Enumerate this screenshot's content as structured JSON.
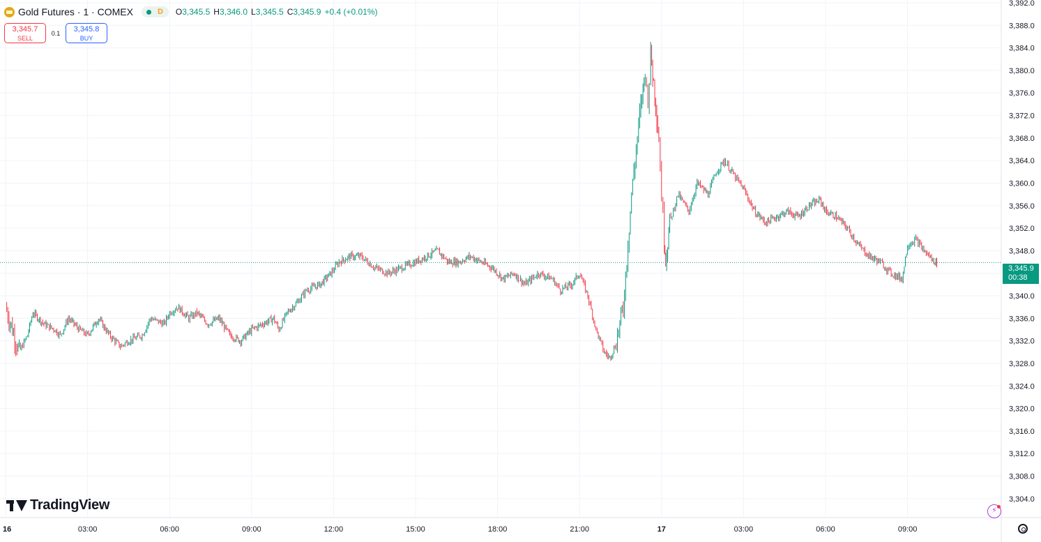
{
  "header": {
    "symbol": "Gold Futures · 1 · COMEX",
    "interval_badge": "D",
    "o_key": "O",
    "o_val": "3,345.5",
    "h_key": "H",
    "h_val": "3,346.0",
    "l_key": "L",
    "l_val": "3,345.5",
    "c_key": "C",
    "c_val": "3,345.9",
    "change": "+0.4 (+0.01%)"
  },
  "trade": {
    "sell_price": "3,345.7",
    "sell_label": "SELL",
    "spread": "0.1",
    "buy_price": "3,345.8",
    "buy_label": "BUY"
  },
  "brand": {
    "name": "TradingView"
  },
  "last_price": {
    "price": "3,345.9",
    "countdown": "00:38"
  },
  "icons": {
    "logo": "gold-coin-icon",
    "live": "green-dot-icon",
    "bolt": "lightning-icon",
    "settings": "gear-icon"
  },
  "colors": {
    "up": "#089981",
    "down": "#f23645",
    "accent": "#2962ff",
    "grid": "#f0f3fa"
  },
  "chart_data": {
    "type": "line",
    "title": "Gold Futures · 1 · COMEX",
    "xlabel": "",
    "ylabel": "",
    "ylim": [
      3302,
      3392
    ],
    "y_ticks": [
      "3,304.0",
      "3,308.0",
      "3,312.0",
      "3,316.0",
      "3,320.0",
      "3,324.0",
      "3,328.0",
      "3,332.0",
      "3,336.0",
      "3,340.0",
      "3,344.0",
      "3,348.0",
      "3,352.0",
      "3,356.0",
      "3,360.0",
      "3,364.0",
      "3,368.0",
      "3,372.0",
      "3,376.0",
      "3,380.0",
      "3,384.0",
      "3,388.0",
      "3,392.0"
    ],
    "x_tick_labels": [
      "16",
      "03:00",
      "06:00",
      "09:00",
      "12:00",
      "15:00",
      "18:00",
      "21:00",
      "17",
      "03:00",
      "06:00",
      "09:00"
    ],
    "x_tick_hours": [
      0,
      3,
      6,
      9,
      12,
      15,
      18,
      21,
      24,
      27,
      30,
      33
    ],
    "x_range_hours": [
      0,
      34.07
    ],
    "grid": true,
    "series": [
      {
        "x_hours": [
          0,
          0.5,
          0.8,
          1,
          1.4,
          1.8,
          2,
          2.3,
          2.7,
          3,
          3.4,
          3.8,
          4.2,
          4.5,
          5,
          5.3,
          5.8,
          6,
          6.3,
          6.7,
          7,
          7.4,
          7.8,
          8.2,
          8.6,
          9,
          9.4,
          9.8,
          10,
          10.3,
          10.7,
          11,
          11.5,
          11.9,
          12.2,
          12.6,
          13,
          13.5,
          14,
          14.5,
          15,
          15.4,
          15.8,
          16.2,
          16.6,
          17,
          17.4,
          17.8,
          18.2,
          18.6,
          19,
          19.5,
          20,
          20.3,
          20.7,
          21,
          21.3,
          21.6,
          21.9,
          22.1,
          22.3,
          22.6,
          22.9,
          23.2,
          23.4,
          23.5,
          23.6,
          23.75,
          23.9,
          24,
          24.1,
          24.15,
          24.3,
          24.6,
          25,
          25.3,
          25.7,
          26,
          26.3,
          26.7,
          27,
          27.4,
          27.8,
          28.2,
          28.6,
          29,
          29.4,
          29.8,
          30,
          30.4,
          30.8,
          31.2,
          31.6,
          32,
          32.4,
          32.8,
          33,
          33.3,
          33.6,
          33.8,
          34,
          34.07
        ],
        "values": [
          3338,
          3330,
          3333,
          3337,
          3335,
          3334,
          3333,
          3336,
          3334,
          3333,
          3336,
          3333,
          3331,
          3332,
          3333,
          3336,
          3335,
          3337,
          3338,
          3336,
          3337,
          3335,
          3336,
          3333,
          3332,
          3334,
          3335,
          3336,
          3334,
          3337,
          3339,
          3341,
          3342,
          3344,
          3346,
          3347,
          3347,
          3345,
          3344,
          3345,
          3346,
          3347,
          3348,
          3346,
          3346,
          3347,
          3346,
          3345,
          3343,
          3344,
          3342,
          3344,
          3343,
          3341,
          3342,
          3344,
          3340,
          3334,
          3330,
          3329,
          3331,
          3338,
          3358,
          3372,
          3380,
          3374,
          3383,
          3376,
          3368,
          3358,
          3350,
          3346,
          3353,
          3358,
          3355,
          3360,
          3358,
          3362,
          3364,
          3361,
          3359,
          3355,
          3353,
          3354,
          3355,
          3354,
          3356,
          3357,
          3355,
          3354,
          3352,
          3349,
          3347,
          3346,
          3344,
          3343,
          3349,
          3350,
          3348,
          3347,
          3346,
          3345.9
        ]
      }
    ]
  }
}
